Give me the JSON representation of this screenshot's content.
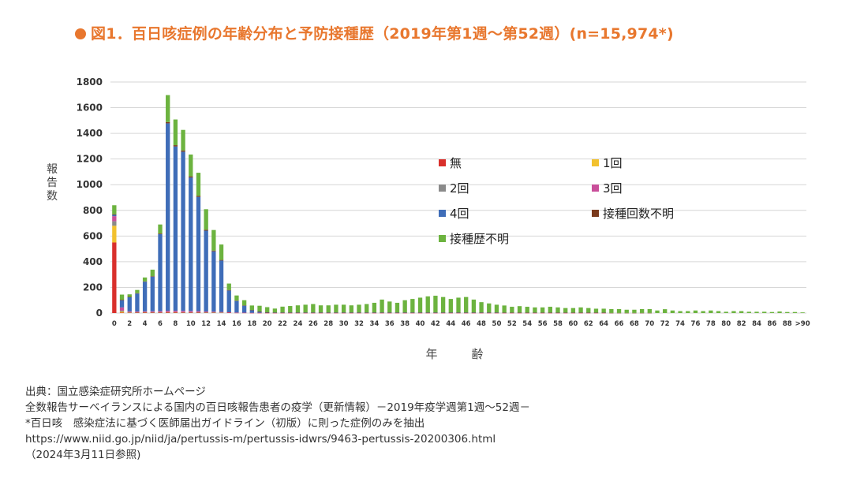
{
  "title": "図1．百日咳症例の年齢分布と予防接種歴（2019年第1週〜第52週）(n=15,974*)",
  "colors": {
    "accent": "#e8772e",
    "無": "#d9302c",
    "1回": "#f2c12e",
    "2回": "#8a8a8a",
    "3回": "#c94f9a",
    "4回": "#3f6db8",
    "接種回数不明": "#7a3a1c",
    "接種歴不明": "#6cb33f",
    "grid": "#d6d6d6"
  },
  "chart_data": {
    "type": "bar",
    "stacked": true,
    "title": "",
    "xlabel": "年　齢",
    "ylabel": "報告数",
    "ylim": [
      0,
      1800
    ],
    "yticks": [
      0,
      200,
      400,
      600,
      800,
      1000,
      1200,
      1400,
      1600,
      1800
    ],
    "grid": true,
    "legend_position": "upper-right inside plot",
    "categories": [
      "0",
      "1",
      "2",
      "3",
      "4",
      "5",
      "6",
      "7",
      "8",
      "9",
      "10",
      "11",
      "12",
      "13",
      "14",
      "15",
      "16",
      "17",
      "18",
      "19",
      "20",
      "21",
      "22",
      "23",
      "24",
      "25",
      "26",
      "27",
      "28",
      "29",
      "30",
      "31",
      "32",
      "33",
      "34",
      "35",
      "36",
      "37",
      "38",
      "39",
      "40",
      "41",
      "42",
      "43",
      "44",
      "45",
      "46",
      "47",
      "48",
      "49",
      "50",
      "51",
      "52",
      "53",
      "54",
      "55",
      "56",
      "57",
      "58",
      "59",
      "60",
      "61",
      "62",
      "63",
      "64",
      "65",
      "66",
      "67",
      "68",
      "69",
      "70",
      "71",
      "72",
      "73",
      "74",
      "75",
      "76",
      "77",
      "78",
      "79",
      "80",
      "81",
      "82",
      "83",
      "84",
      "85",
      "86",
      "87",
      "88",
      "89",
      ">90"
    ],
    "tick_labels": [
      "0",
      "2",
      "4",
      "6",
      "8",
      "10",
      "12",
      "14",
      "16",
      "18",
      "20",
      "22",
      "24",
      "26",
      "28",
      "30",
      "32",
      "34",
      "36",
      "38",
      "40",
      "42",
      "44",
      "46",
      "48",
      "50",
      "52",
      "54",
      "56",
      "58",
      "60",
      "62",
      "64",
      "66",
      "68",
      "70",
      "72",
      "74",
      "76",
      "78",
      "80",
      "82",
      "84",
      "86",
      "88",
      ">90"
    ],
    "series": [
      {
        "name": "無",
        "values": [
          550,
          3,
          3,
          5,
          6,
          5,
          5,
          6,
          6,
          5,
          5,
          5,
          4,
          4,
          3,
          3,
          2,
          2,
          1,
          1,
          1,
          1,
          1,
          1,
          1,
          1,
          1,
          1,
          1,
          1,
          1,
          1,
          1,
          1,
          1,
          1,
          1,
          1,
          1,
          1,
          1,
          1,
          1,
          1,
          1,
          1,
          1,
          1,
          1,
          1,
          1,
          1,
          1,
          1,
          1,
          1,
          1,
          1,
          1,
          1,
          1,
          1,
          1,
          1,
          1,
          0,
          0,
          0,
          0,
          0,
          0,
          0,
          0,
          0,
          0,
          0,
          0,
          0,
          0,
          0,
          0,
          0,
          0,
          0,
          0,
          0,
          0,
          0,
          0,
          0,
          0
        ]
      },
      {
        "name": "1回",
        "values": [
          130,
          8,
          2,
          1,
          1,
          1,
          1,
          1,
          1,
          1,
          1,
          1,
          1,
          1,
          1,
          0,
          0,
          0,
          0,
          0,
          0,
          0,
          0,
          0,
          0,
          0,
          0,
          0,
          0,
          0,
          0,
          0,
          0,
          0,
          0,
          0,
          0,
          0,
          0,
          0,
          0,
          0,
          0,
          0,
          0,
          0,
          0,
          0,
          0,
          0,
          0,
          0,
          0,
          0,
          0,
          0,
          0,
          0,
          0,
          0,
          0,
          0,
          0,
          0,
          0,
          0,
          0,
          0,
          0,
          0,
          0,
          0,
          0,
          0,
          0,
          0,
          0,
          0,
          0,
          0,
          0,
          0,
          0,
          0,
          0,
          0,
          0,
          0,
          0,
          0,
          0
        ]
      },
      {
        "name": "2回",
        "values": [
          35,
          8,
          2,
          1,
          1,
          1,
          1,
          1,
          1,
          1,
          1,
          1,
          1,
          1,
          1,
          0,
          0,
          0,
          0,
          0,
          0,
          0,
          0,
          0,
          0,
          0,
          0,
          0,
          0,
          0,
          0,
          0,
          0,
          0,
          0,
          0,
          0,
          0,
          0,
          0,
          0,
          0,
          0,
          0,
          0,
          0,
          0,
          0,
          0,
          0,
          0,
          0,
          0,
          0,
          0,
          0,
          0,
          0,
          0,
          0,
          0,
          0,
          0,
          0,
          0,
          0,
          0,
          0,
          0,
          0,
          0,
          0,
          0,
          0,
          0,
          0,
          0,
          0,
          0,
          0,
          0,
          0,
          0,
          0,
          0,
          0,
          0,
          0,
          0,
          0,
          0
        ]
      },
      {
        "name": "3回",
        "values": [
          40,
          25,
          6,
          5,
          6,
          7,
          8,
          10,
          10,
          10,
          9,
          8,
          6,
          5,
          4,
          3,
          2,
          1,
          1,
          1,
          1,
          1,
          1,
          1,
          1,
          1,
          1,
          1,
          1,
          1,
          1,
          1,
          1,
          1,
          1,
          1,
          1,
          1,
          1,
          1,
          1,
          1,
          1,
          1,
          1,
          1,
          1,
          1,
          1,
          1,
          1,
          1,
          1,
          1,
          1,
          1,
          1,
          1,
          1,
          1,
          1,
          1,
          1,
          1,
          1,
          0,
          0,
          0,
          0,
          0,
          0,
          0,
          0,
          0,
          0,
          0,
          0,
          0,
          0,
          0,
          0,
          0,
          0,
          0,
          0,
          0,
          0,
          0,
          0,
          0,
          0
        ]
      },
      {
        "name": "4回",
        "values": [
          10,
          55,
          110,
          140,
          230,
          270,
          600,
          1460,
          1280,
          1240,
          1040,
          890,
          630,
          470,
          400,
          170,
          90,
          55,
          20,
          8,
          2,
          1,
          1,
          1,
          1,
          1,
          1,
          1,
          1,
          1,
          1,
          1,
          1,
          1,
          1,
          1,
          1,
          1,
          1,
          1,
          1,
          1,
          1,
          1,
          1,
          1,
          1,
          1,
          1,
          1,
          1,
          1,
          1,
          1,
          1,
          1,
          1,
          1,
          1,
          1,
          1,
          1,
          1,
          1,
          1,
          0,
          0,
          0,
          0,
          0,
          0,
          0,
          0,
          0,
          0,
          0,
          0,
          0,
          0,
          0,
          0,
          0,
          0,
          0,
          0,
          0,
          0,
          0,
          0,
          0,
          0
        ]
      },
      {
        "name": "接種回数不明",
        "values": [
          5,
          5,
          3,
          3,
          3,
          4,
          5,
          10,
          10,
          10,
          9,
          8,
          7,
          6,
          5,
          4,
          3,
          2,
          2,
          2,
          2,
          2,
          2,
          2,
          2,
          2,
          2,
          2,
          2,
          2,
          2,
          2,
          2,
          2,
          2,
          2,
          2,
          2,
          2,
          2,
          2,
          2,
          2,
          2,
          2,
          2,
          2,
          2,
          2,
          2,
          2,
          1,
          1,
          1,
          1,
          1,
          1,
          1,
          1,
          1,
          1,
          1,
          1,
          1,
          1,
          1,
          1,
          1,
          1,
          1,
          1,
          0,
          0,
          0,
          0,
          0,
          0,
          0,
          0,
          0,
          0,
          0,
          0,
          0,
          0,
          0,
          0,
          0,
          0,
          0,
          0
        ]
      },
      {
        "name": "接種歴不明",
        "values": [
          70,
          40,
          20,
          25,
          30,
          50,
          70,
          210,
          200,
          160,
          170,
          180,
          160,
          160,
          120,
          50,
          40,
          40,
          35,
          45,
          40,
          30,
          45,
          50,
          55,
          60,
          65,
          55,
          55,
          60,
          60,
          55,
          60,
          65,
          75,
          100,
          85,
          75,
          95,
          105,
          115,
          125,
          130,
          120,
          105,
          115,
          120,
          100,
          80,
          70,
          60,
          55,
          45,
          50,
          45,
          40,
          40,
          45,
          40,
          35,
          35,
          40,
          35,
          30,
          30,
          30,
          30,
          25,
          25,
          30,
          30,
          20,
          30,
          20,
          15,
          15,
          20,
          15,
          20,
          15,
          10,
          15,
          15,
          10,
          10,
          10,
          8,
          12,
          8,
          8,
          5
        ]
      }
    ]
  },
  "notes": [
    "出典：国立感染症研究所ホームページ",
    "全数報告サーベイランスによる国内の百日咳報告患者の疫学（更新情報）－2019年疫学週第1週〜52週－",
    "*百日咳　感染症法に基づく医師届出ガイドライン（初版）に則った症例のみを抽出",
    "https://www.niid.go.jp/niid/ja/pertussis-m/pertussis-idwrs/9463-pertussis-20200306.html",
    "（2024年3月11日参照)"
  ]
}
